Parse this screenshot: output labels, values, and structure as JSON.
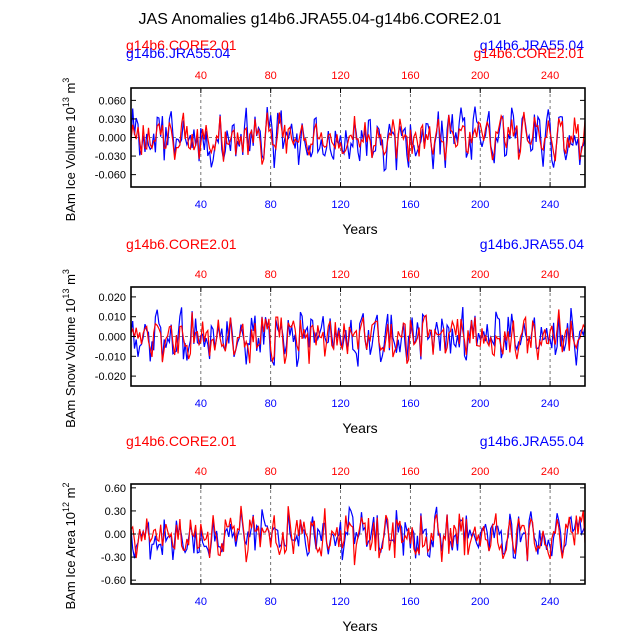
{
  "title": "JAS Anomalies g14b6.JRA55.04-g14b6.CORE2.01",
  "colors": {
    "series_a": "#ff0000",
    "series_b": "#0000ff",
    "axis": "#000000",
    "grid": "#555555"
  },
  "chart_data": [
    {
      "type": "line",
      "ylabel": "BAm Ice Volume 10^13 m^3",
      "ylabel_main": "BAm Ice Volume 10",
      "ylabel_exp": "13",
      "ylabel_unit": " m",
      "ylabel_unit_exp": "3",
      "xlabel": "Years",
      "ylim": [
        -0.08,
        0.08
      ],
      "yticks": [
        -0.06,
        -0.03,
        0.0,
        0.03,
        0.06
      ],
      "ytick_labels": [
        "-0.060",
        "-0.030",
        "0.000",
        "0.030",
        "0.060"
      ],
      "xlim": [
        0,
        260
      ],
      "xticks": [
        40,
        80,
        120,
        160,
        200,
        240
      ],
      "xtick_labels": [
        "40",
        "80",
        "120",
        "160",
        "200",
        "240"
      ],
      "gridlines_x": [
        40,
        80,
        120,
        160,
        200,
        240
      ],
      "legend_left": [
        "g14b6.CORE2.01",
        "g14b6.JRA55.04"
      ],
      "legend_right": [
        "g14b6.JRA55.04",
        "g14b6.CORE2.01"
      ],
      "series": [
        {
          "name": "g14b6.CORE2.01",
          "color": "#ff0000",
          "amp": 0.022,
          "seed": 11
        },
        {
          "name": "g14b6.JRA55.04",
          "color": "#0000ff",
          "amp": 0.028,
          "seed": 5
        }
      ]
    },
    {
      "type": "line",
      "ylabel": "BAm Snow Volume 10^13 m^3",
      "ylabel_main": "BAm Snow Volume 10",
      "ylabel_exp": "13",
      "ylabel_unit": " m",
      "ylabel_unit_exp": "3",
      "xlabel": "Years",
      "ylim": [
        -0.025,
        0.025
      ],
      "yticks": [
        -0.02,
        -0.01,
        0.0,
        0.01,
        0.02
      ],
      "ytick_labels": [
        "-0.020",
        "-0.010",
        "0.000",
        "0.010",
        "0.020"
      ],
      "xlim": [
        0,
        260
      ],
      "xticks": [
        40,
        80,
        120,
        160,
        200,
        240
      ],
      "xtick_labels": [
        "40",
        "80",
        "120",
        "160",
        "200",
        "240"
      ],
      "gridlines_x": [
        40,
        80,
        120,
        160,
        200,
        240
      ],
      "legend_left": [
        "g14b6.CORE2.01"
      ],
      "legend_right": [
        "g14b6.JRA55.04"
      ],
      "series": [
        {
          "name": "g14b6.CORE2.01",
          "color": "#ff0000",
          "amp": 0.0075,
          "seed": 23
        },
        {
          "name": "g14b6.JRA55.04",
          "color": "#0000ff",
          "amp": 0.0085,
          "seed": 37
        }
      ]
    },
    {
      "type": "line",
      "ylabel": "BAm Ice Area 10^12 m^2",
      "ylabel_main": "BAm Ice Area 10",
      "ylabel_exp": "12",
      "ylabel_unit": " m",
      "ylabel_unit_exp": "2",
      "xlabel": "Years",
      "ylim": [
        -0.65,
        0.65
      ],
      "yticks": [
        -0.6,
        -0.3,
        0.0,
        0.3,
        0.6
      ],
      "ytick_labels": [
        "-0.60",
        "-0.30",
        "0.00",
        "0.30",
        "0.60"
      ],
      "xlim": [
        0,
        260
      ],
      "xticks": [
        40,
        80,
        120,
        160,
        200,
        240
      ],
      "xtick_labels": [
        "40",
        "80",
        "120",
        "160",
        "200",
        "240"
      ],
      "gridlines_x": [
        40,
        80,
        120,
        160,
        200,
        240
      ],
      "legend_left": [
        "g14b6.CORE2.01"
      ],
      "legend_right": [
        "g14b6.JRA55.04"
      ],
      "series": [
        {
          "name": "g14b6.CORE2.01",
          "color": "#ff0000",
          "amp": 0.2,
          "seed": 41
        },
        {
          "name": "g14b6.JRA55.04",
          "color": "#0000ff",
          "amp": 0.19,
          "seed": 53
        }
      ]
    }
  ]
}
